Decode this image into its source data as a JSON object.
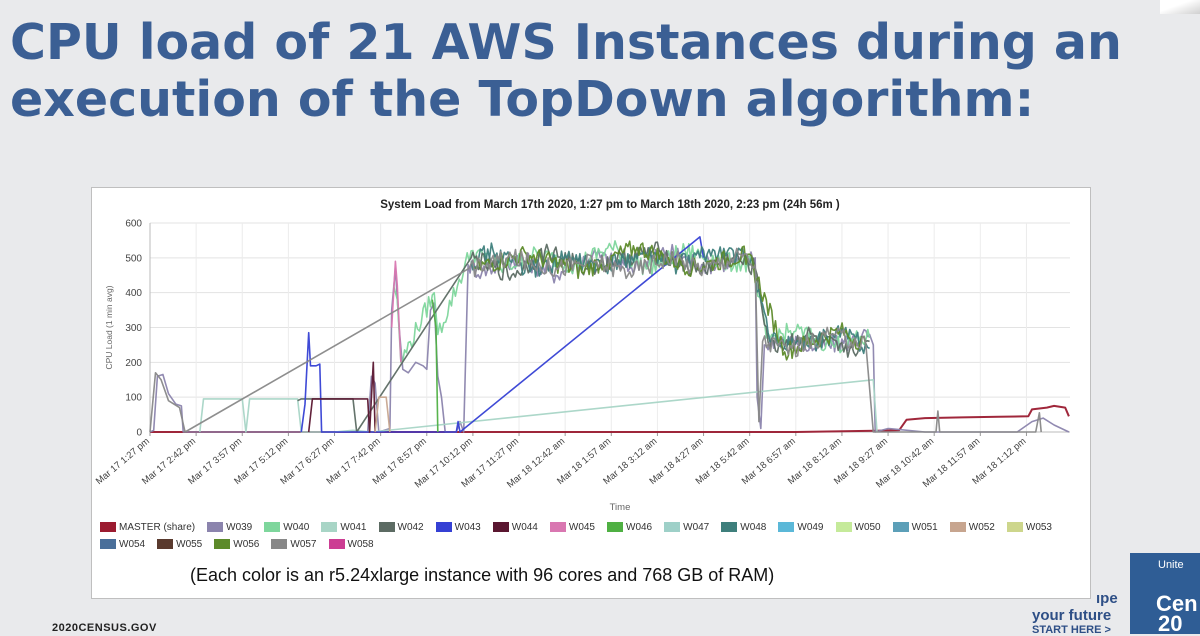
{
  "slide": {
    "title_line1": "CPU load of 21 AWS Instances during an",
    "title_line2": "execution of the TopDown algorithm:",
    "caption": "(Each color is an r5.24xlarge instance with 96 cores and 768 GB of RAM)",
    "footer_url": "2020CENSUS.GOV",
    "promo": {
      "line1": "ıpe",
      "line2": "your future",
      "line3": "START HERE >",
      "box_top": "Unite",
      "box_mid": "Cen",
      "box_bottom": "20"
    }
  },
  "chart_data": {
    "type": "line",
    "title": "System Load from March 17th 2020, 1:27 pm to March 18th 2020, 2:23 pm (24h 56m )",
    "xlabel": "Time",
    "ylabel": "CPU Load (1 min avg)",
    "ylim": [
      0,
      600
    ],
    "yticks": [
      0,
      100,
      200,
      300,
      400,
      500,
      600
    ],
    "grid": true,
    "legend_position": "bottom",
    "x_tick_labels": [
      "Mar 17 1:27 pm",
      "Mar 17 2:42 pm",
      "Mar 17 3:57 pm",
      "Mar 17 5:12 pm",
      "Mar 17 6:27 pm",
      "Mar 17 7:42 pm",
      "Mar 17 8:57 pm",
      "Mar 17 10:12 pm",
      "Mar 17 11:27 pm",
      "Mar 18 12:42 am",
      "Mar 18 1:57 am",
      "Mar 18 3:12 am",
      "Mar 18 4:27 am",
      "Mar 18 5:42 am",
      "Mar 18 6:57 am",
      "Mar 18 8:12 am",
      "Mar 18 9:27 am",
      "Mar 18 10:42 am",
      "Mar 18 11:57 am",
      "Mar 18 1:12 pm"
    ],
    "x_tick_hours": [
      0,
      1.25,
      2.5,
      3.75,
      5,
      6.25,
      7.5,
      8.75,
      10,
      11.25,
      12.5,
      13.75,
      15,
      16.25,
      17.5,
      18.75,
      20,
      21.25,
      22.5,
      23.75
    ],
    "x_range_hours": [
      0,
      24.93
    ],
    "legend": [
      {
        "name": "MASTER (share)",
        "color": "#9b1b30"
      },
      {
        "name": "W039",
        "color": "#8b84ad"
      },
      {
        "name": "W040",
        "color": "#7ed69c"
      },
      {
        "name": "W041",
        "color": "#a8d5c6"
      },
      {
        "name": "W042",
        "color": "#5c6b63"
      },
      {
        "name": "W043",
        "color": "#3540d4"
      },
      {
        "name": "W044",
        "color": "#5a1630"
      },
      {
        "name": "W045",
        "color": "#d977b1"
      },
      {
        "name": "W046",
        "color": "#4fb043"
      },
      {
        "name": "W047",
        "color": "#9ed0c8"
      },
      {
        "name": "W048",
        "color": "#3e7f7c"
      },
      {
        "name": "W049",
        "color": "#5bb8d8"
      },
      {
        "name": "W050",
        "color": "#c5ea9a"
      },
      {
        "name": "W051",
        "color": "#5c9fb8"
      },
      {
        "name": "W052",
        "color": "#c7a58f"
      },
      {
        "name": "W053",
        "color": "#cdd68c"
      },
      {
        "name": "W054",
        "color": "#4a6f9a"
      },
      {
        "name": "W055",
        "color": "#5a3a2e"
      },
      {
        "name": "W056",
        "color": "#5d8a2a"
      },
      {
        "name": "W057",
        "color": "#888888"
      },
      {
        "name": "W058",
        "color": "#cc3d93"
      }
    ],
    "series": [
      {
        "name": "MASTER (share)",
        "color": "#9b1b30",
        "points": [
          [
            0,
            0
          ],
          [
            6,
            0
          ],
          [
            12,
            0
          ],
          [
            17.5,
            0
          ],
          [
            20.3,
            5
          ],
          [
            20.5,
            35
          ],
          [
            21,
            40
          ],
          [
            22,
            42
          ],
          [
            23,
            44
          ],
          [
            23.8,
            45
          ],
          [
            23.9,
            65
          ],
          [
            24.3,
            70
          ],
          [
            24.5,
            75
          ],
          [
            24.8,
            70
          ],
          [
            24.9,
            45
          ]
        ]
      },
      {
        "name": "W039",
        "color": "#8b84ad",
        "points": [
          [
            0,
            0
          ],
          [
            0.1,
            5
          ],
          [
            0.2,
            160
          ],
          [
            0.35,
            165
          ],
          [
            0.5,
            110
          ],
          [
            0.7,
            80
          ],
          [
            0.85,
            75
          ],
          [
            0.9,
            0
          ],
          [
            5.9,
            0
          ],
          [
            6.0,
            160
          ],
          [
            6.1,
            140
          ],
          [
            6.2,
            0
          ],
          [
            6.5,
            10
          ],
          [
            6.55,
            350
          ],
          [
            6.65,
            470
          ],
          [
            6.75,
            300
          ],
          [
            6.85,
            180
          ],
          [
            7.0,
            170
          ],
          [
            7.2,
            200
          ],
          [
            7.4,
            190
          ],
          [
            7.5,
            180
          ],
          [
            7.6,
            350
          ],
          [
            7.7,
            370
          ],
          [
            7.8,
            160
          ],
          [
            7.9,
            100
          ],
          [
            8.0,
            0
          ],
          [
            8.3,
            0
          ],
          [
            8.4,
            30
          ],
          [
            8.5,
            0
          ],
          [
            8.62,
            480
          ],
          [
            9,
            460
          ],
          [
            10,
            500
          ],
          [
            11,
            450
          ],
          [
            12,
            510
          ],
          [
            13,
            470
          ],
          [
            14,
            520
          ],
          [
            15,
            480
          ],
          [
            16,
            490
          ],
          [
            16.4,
            500
          ],
          [
            16.45,
            100
          ],
          [
            16.55,
            10
          ],
          [
            16.65,
            250
          ],
          [
            17,
            270
          ],
          [
            18,
            240
          ],
          [
            19,
            260
          ],
          [
            19.5,
            280
          ],
          [
            19.6,
            250
          ],
          [
            19.65,
            0
          ],
          [
            20,
            10
          ],
          [
            21,
            0
          ],
          [
            22,
            0
          ],
          [
            23.5,
            0
          ],
          [
            23.9,
            30
          ],
          [
            24.2,
            40
          ],
          [
            24.5,
            20
          ],
          [
            24.9,
            0
          ]
        ]
      },
      {
        "name": "W040",
        "color": "#7ed69c",
        "points": [
          [
            6.6,
            420
          ],
          [
            6.7,
            380
          ],
          [
            6.8,
            200
          ],
          [
            7.7,
            400
          ],
          [
            7.8,
            280
          ],
          [
            8.7,
            520
          ],
          [
            9.5,
            470
          ],
          [
            10.5,
            510
          ],
          [
            11.5,
            480
          ],
          [
            12.5,
            530
          ],
          [
            13.5,
            470
          ],
          [
            14.5,
            520
          ],
          [
            15.5,
            490
          ],
          [
            16.3,
            480
          ],
          [
            16.7,
            270
          ],
          [
            17.5,
            290
          ],
          [
            18.5,
            250
          ],
          [
            19.5,
            270
          ]
        ]
      },
      {
        "name": "W041",
        "color": "#a8d5c6",
        "points": [
          [
            1.35,
            0
          ],
          [
            1.45,
            95
          ],
          [
            2.5,
            95
          ],
          [
            2.6,
            0
          ],
          [
            2.7,
            95
          ],
          [
            4.0,
            95
          ],
          [
            4.1,
            0
          ],
          [
            5.0,
            0
          ],
          [
            5.5,
            5
          ],
          [
            6.0,
            0
          ],
          [
            19.6,
            150
          ],
          [
            19.7,
            0
          ]
        ]
      },
      {
        "name": "W042",
        "color": "#5c6b63",
        "points": [
          [
            4.0,
            90
          ],
          [
            4.1,
            95
          ],
          [
            5.5,
            95
          ],
          [
            5.6,
            0
          ],
          [
            8.7,
            500
          ],
          [
            9.8,
            450
          ],
          [
            10.8,
            520
          ],
          [
            11.8,
            470
          ],
          [
            12.8,
            500
          ],
          [
            13.8,
            520
          ],
          [
            14.8,
            460
          ],
          [
            15.8,
            500
          ],
          [
            16.4,
            470
          ],
          [
            16.8,
            240
          ],
          [
            17.8,
            280
          ],
          [
            18.8,
            230
          ],
          [
            19.5,
            260
          ]
        ]
      },
      {
        "name": "W043",
        "color": "#3540d4",
        "points": [
          [
            4.1,
            0
          ],
          [
            4.2,
            80
          ],
          [
            4.3,
            285
          ],
          [
            4.35,
            190
          ],
          [
            4.5,
            190
          ],
          [
            4.6,
            195
          ],
          [
            4.65,
            0
          ],
          [
            8.3,
            0
          ],
          [
            8.35,
            30
          ],
          [
            8.4,
            0
          ],
          [
            14.9,
            560
          ],
          [
            15,
            500
          ]
        ]
      },
      {
        "name": "W044",
        "color": "#5a1630",
        "points": [
          [
            4.3,
            0
          ],
          [
            4.4,
            95
          ],
          [
            5.9,
            95
          ],
          [
            5.95,
            0
          ],
          [
            6.05,
            200
          ],
          [
            6.1,
            0
          ]
        ]
      },
      {
        "name": "W045",
        "color": "#d977b1",
        "points": [
          [
            6.55,
            300
          ],
          [
            6.65,
            490
          ],
          [
            6.7,
            420
          ],
          [
            6.8,
            200
          ]
        ]
      },
      {
        "name": "W046",
        "color": "#4fb043",
        "points": [
          [
            7.65,
            380
          ],
          [
            7.75,
            300
          ],
          [
            7.8,
            0
          ]
        ]
      },
      {
        "name": "W048",
        "color": "#3e7f7c",
        "points": [
          [
            8.7,
            490
          ],
          [
            9.3,
            520
          ],
          [
            10.3,
            460
          ],
          [
            11.3,
            500
          ],
          [
            12.3,
            470
          ],
          [
            13.3,
            510
          ],
          [
            14.3,
            480
          ],
          [
            15.3,
            520
          ],
          [
            16.3,
            500
          ],
          [
            16.8,
            260
          ],
          [
            17.8,
            250
          ],
          [
            18.8,
            290
          ],
          [
            19.5,
            240
          ]
        ]
      },
      {
        "name": "W052",
        "color": "#c7a58f",
        "points": [
          [
            6.1,
            0
          ],
          [
            6.2,
            100
          ],
          [
            6.4,
            100
          ],
          [
            6.5,
            0
          ]
        ]
      },
      {
        "name": "W056",
        "color": "#5d8a2a",
        "points": [
          [
            8.8,
            470
          ],
          [
            10.2,
            510
          ],
          [
            11.7,
            460
          ],
          [
            13.2,
            530
          ],
          [
            14.7,
            470
          ],
          [
            16.2,
            510
          ],
          [
            17.2,
            230
          ],
          [
            18.7,
            290
          ],
          [
            19.4,
            250
          ]
        ]
      },
      {
        "name": "W057",
        "color": "#888888",
        "points": [
          [
            0,
            0
          ],
          [
            0.15,
            170
          ],
          [
            0.3,
            150
          ],
          [
            0.5,
            90
          ],
          [
            0.8,
            70
          ],
          [
            0.95,
            0
          ],
          [
            8.65,
            470
          ],
          [
            9.8,
            500
          ],
          [
            11.0,
            470
          ],
          [
            12.0,
            490
          ],
          [
            13.0,
            460
          ],
          [
            14.0,
            500
          ],
          [
            15.0,
            470
          ],
          [
            16.0,
            510
          ],
          [
            16.4,
            480
          ],
          [
            16.5,
            30
          ],
          [
            16.6,
            260
          ],
          [
            17.4,
            240
          ],
          [
            18.4,
            280
          ],
          [
            19.4,
            250
          ],
          [
            19.6,
            0
          ],
          [
            21.3,
            0
          ],
          [
            21.35,
            60
          ],
          [
            21.4,
            0
          ],
          [
            24.0,
            0
          ],
          [
            24.1,
            55
          ],
          [
            24.15,
            0
          ]
        ]
      }
    ]
  }
}
